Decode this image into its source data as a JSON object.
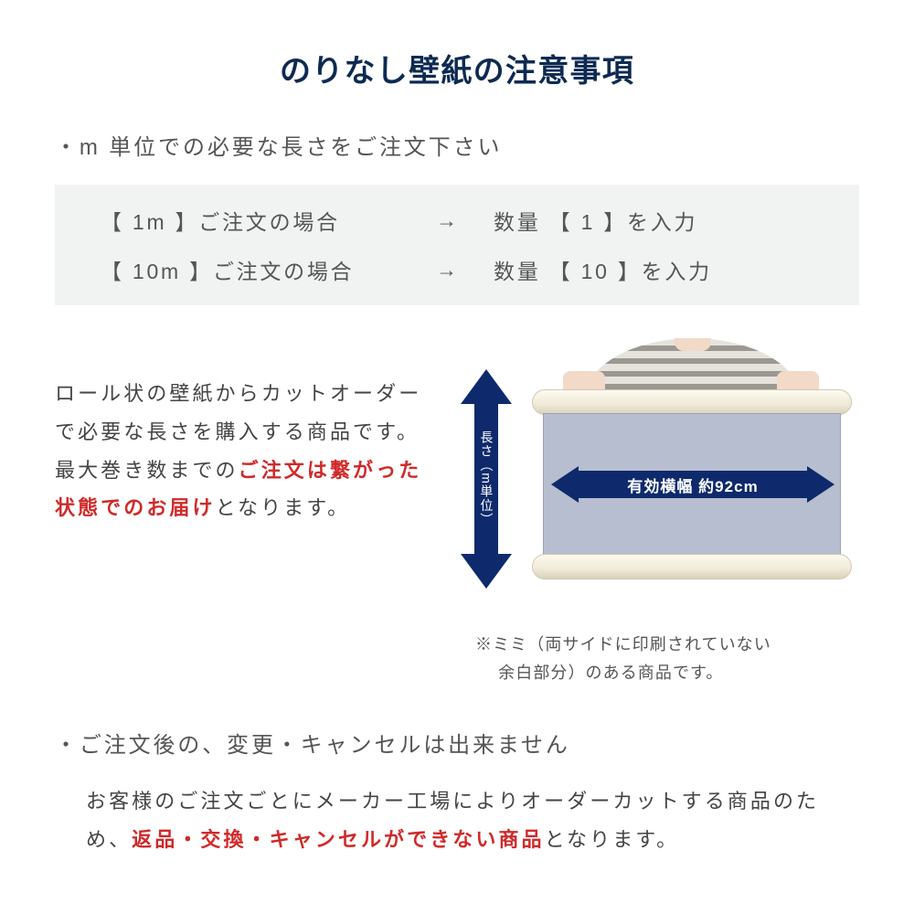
{
  "title": "のりなし壁紙の注意事項",
  "bullet1": "・m 単位での必要な長さをご注文下さい",
  "orderBox": {
    "row1_left": "【 1m 】ご注文の場合",
    "arrow": "→",
    "row1_right": "数量 【 1 】を入力",
    "row2_left": "【 10m 】ご注文の場合",
    "row2_right": "数量 【 10 】を入力"
  },
  "midText": {
    "p1a": "ロール状の壁紙からカットオーダーで必要な長さを購入する商品です。最大巻き数までの",
    "p1_red": "ご注文は繋がった状態でのお届け",
    "p1b": "となります。"
  },
  "illustration": {
    "v_label": "長さ（m単位）",
    "h_label": "有効横幅 約92cm"
  },
  "mimi": "※ミミ（両サイドに印刷されていない\n　 余白部分）のある商品です。",
  "bullet2": "・ご注文後の、変更・キャンセルは出来ません",
  "cancel": {
    "a": "お客様のご注文ごとにメーカー工場によりオーダーカットする商品のため、",
    "red": "返品・交換・キャンセルができない商品",
    "b": "となります。"
  },
  "colors": {
    "title": "#0e2a52",
    "arrow_fill": "#0e2a6c",
    "red": "#d02a2a",
    "box_bg": "#f1f2f2",
    "panel": "#b7becf"
  }
}
